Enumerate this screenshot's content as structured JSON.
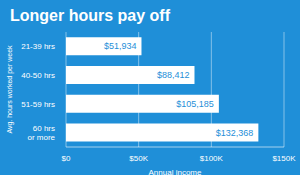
{
  "chart_data": {
    "type": "bar",
    "orientation": "horizontal",
    "title": "Longer hours pay off",
    "categories": [
      "21-39 hrs",
      "40-50 hrs",
      "51-59 hrs",
      "60 hrs or more"
    ],
    "values": [
      51934,
      88412,
      105185,
      132368
    ],
    "value_labels": [
      "$51,934",
      "$88,412",
      "$105,185",
      "$132,368"
    ],
    "data_labels": true,
    "color": "#ffffff",
    "xlim": [
      0,
      150000
    ],
    "xticks": [
      {
        "value": 0,
        "label": "$0"
      },
      {
        "value": 50000,
        "label": "$50K"
      },
      {
        "value": 100000,
        "label": "$100K"
      },
      {
        "value": 150000,
        "label": "$150K"
      }
    ],
    "x_label": "Annual income",
    "y_label": "Avg. hours worked per week",
    "grid": true
  }
}
